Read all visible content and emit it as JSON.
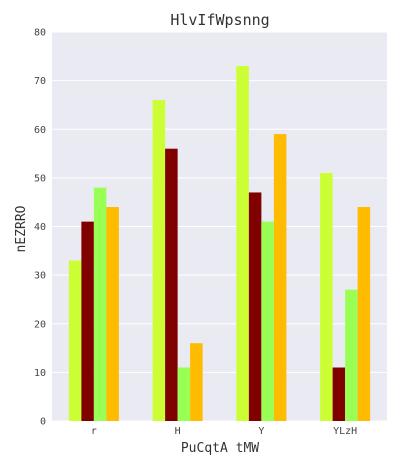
{
  "chart_data": {
    "type": "bar",
    "title": "HlvIfWpsnng",
    "xlabel": "PuCqtA tMW",
    "ylabel": "nEZRRO",
    "categories": [
      "r",
      "H",
      "Y",
      "YLzH"
    ],
    "ylim": [
      0,
      80
    ],
    "yticks": [
      0,
      10,
      20,
      30,
      40,
      50,
      60,
      70,
      80
    ],
    "grid": true,
    "legend": "none",
    "series": [
      {
        "values": [
          33,
          66,
          73,
          51
        ],
        "color": "#ccff33"
      },
      {
        "values": [
          41,
          56,
          47,
          11
        ],
        "color": "#800000"
      },
      {
        "values": [
          48,
          11,
          41,
          27
        ],
        "color": "#99ff55"
      },
      {
        "values": [
          44,
          16,
          59,
          44
        ],
        "color": "#ffbb00"
      }
    ],
    "background_color": "#eaeaf2"
  }
}
